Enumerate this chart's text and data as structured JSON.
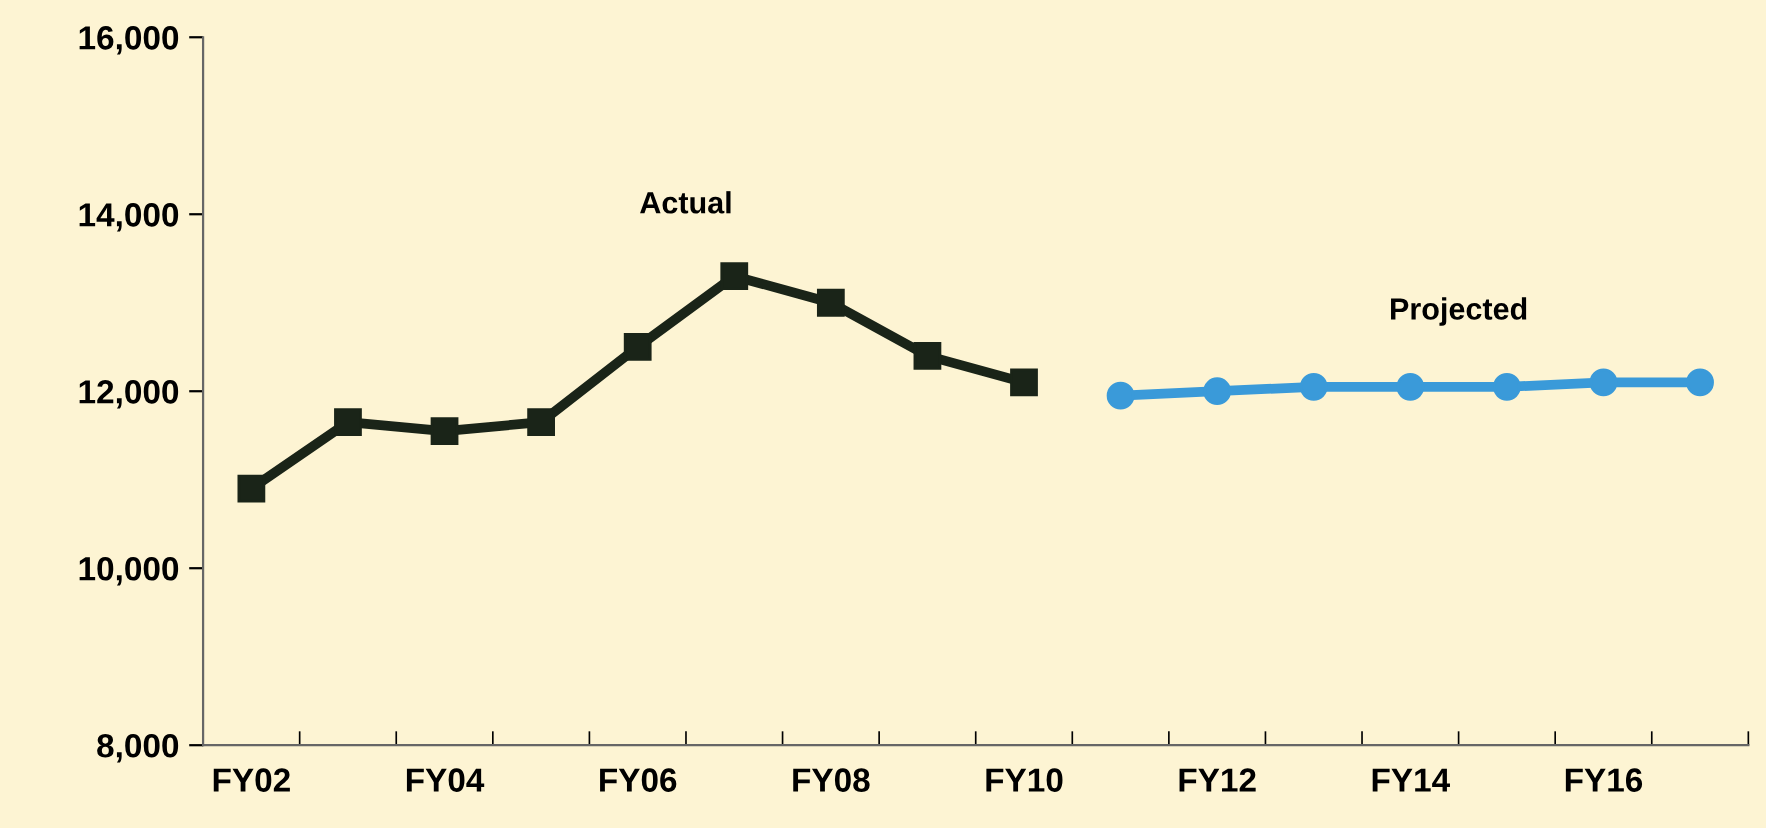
{
  "chart_data": {
    "type": "line",
    "categories": [
      "FY02",
      null,
      "FY04",
      null,
      "FY06",
      null,
      "FY08",
      null,
      "FY10",
      null,
      "FY12",
      null,
      "FY14",
      null,
      "FY16",
      null
    ],
    "series": [
      {
        "name": "Actual",
        "color": "#1a2418",
        "marker": "square",
        "values": [
          10900,
          11650,
          11550,
          11650,
          12500,
          13300,
          13000,
          12400,
          12100,
          null,
          null,
          null,
          null,
          null,
          null,
          null
        ]
      },
      {
        "name": "Projected",
        "color": "#3a9ad9",
        "marker": "circle",
        "values": [
          null,
          null,
          null,
          null,
          null,
          null,
          null,
          null,
          null,
          11950,
          12000,
          12050,
          12050,
          12050,
          12100,
          12100
        ]
      }
    ],
    "ylim": [
      8000,
      16000
    ],
    "yticks": [
      {
        "value": 8000,
        "label": "8,000"
      },
      {
        "value": 10000,
        "label": "10,000"
      },
      {
        "value": 12000,
        "label": "12,000"
      },
      {
        "value": 14000,
        "label": "14,000"
      },
      {
        "value": 16000,
        "label": "16,000"
      }
    ],
    "grid": false,
    "legend": false
  }
}
